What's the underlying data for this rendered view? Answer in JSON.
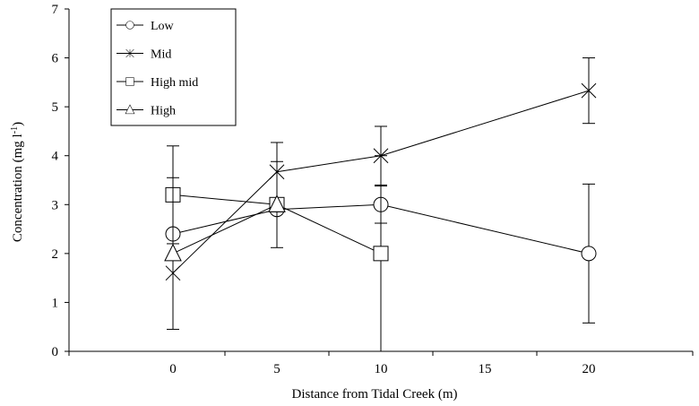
{
  "chart_data": {
    "type": "line",
    "title": "",
    "xlabel": "Distance from Tidal Creek (m)",
    "ylabel_main": "Concentration (mg l",
    "ylabel_sup": "-1",
    "ylabel_close": ")",
    "xlim": [
      -5,
      25
    ],
    "ylim": [
      0,
      7
    ],
    "x_ticks": [
      0,
      5,
      10,
      15,
      20
    ],
    "y_ticks": [
      0,
      1,
      2,
      3,
      4,
      5,
      6,
      7
    ],
    "grid": false,
    "legend_position": "top-left",
    "series": [
      {
        "name": "Low",
        "marker": "circle",
        "points": [
          {
            "x": 0,
            "y": 2.4,
            "err": 0.0
          },
          {
            "x": 5,
            "y": 2.9,
            "err": 0.0
          },
          {
            "x": 10,
            "y": 3.0,
            "err": 0.38
          },
          {
            "x": 20,
            "y": 2.0,
            "err": 1.42
          }
        ]
      },
      {
        "name": "Mid",
        "marker": "star",
        "points": [
          {
            "x": 0,
            "y": 1.6,
            "err": 0.0
          },
          {
            "x": 5,
            "y": 3.67,
            "err": 0.6
          },
          {
            "x": 10,
            "y": 4.0,
            "err": 0.6
          },
          {
            "x": 20,
            "y": 5.33,
            "err": 0.67
          }
        ]
      },
      {
        "name": "High mid",
        "marker": "square",
        "points": [
          {
            "x": 0,
            "y": 3.2,
            "err": 1.0
          },
          {
            "x": 5,
            "y": 3.0,
            "err": 0.0
          },
          {
            "x": 10,
            "y": 2.0,
            "err": 2.0
          }
        ]
      },
      {
        "name": "High",
        "marker": "triangle",
        "points": [
          {
            "x": 0,
            "y": 2.0,
            "err": 1.55
          },
          {
            "x": 5,
            "y": 3.0,
            "err": 0.88
          }
        ]
      }
    ]
  }
}
